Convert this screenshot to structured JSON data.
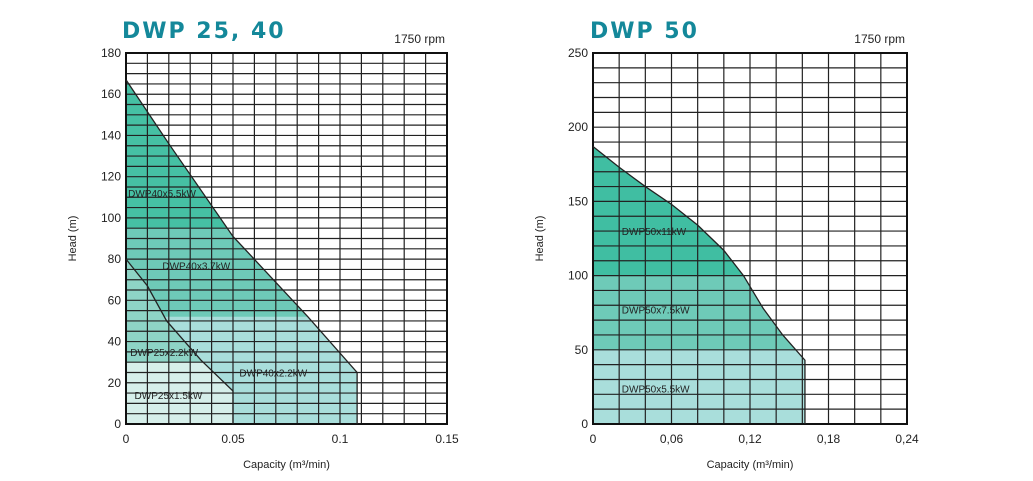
{
  "chart_data": [
    {
      "type": "area",
      "title": "DWP 25, 40",
      "subtitle": "1750 rpm",
      "xlabel": "Capacity (m³/min)",
      "ylabel": "Head (m)",
      "xlim": [
        0,
        0.15
      ],
      "ylim": [
        0,
        180
      ],
      "xticks": [
        0,
        0.05,
        0.1,
        0.15
      ],
      "xtick_labels": [
        "0",
        "0.05",
        "0.1",
        "0.15"
      ],
      "yticks": [
        0,
        20,
        40,
        60,
        80,
        100,
        120,
        140,
        160,
        180
      ],
      "x_grid_step": 0.01,
      "y_grid_step": 5,
      "curves": [
        {
          "name": "DWP40",
          "points": [
            [
              0,
              167
            ],
            [
              0.02,
              136
            ],
            [
              0.05,
              91
            ],
            [
              0.059,
              81
            ],
            [
              0.085,
              52
            ],
            [
              0.108,
              25
            ]
          ],
          "end_x": 0.108
        },
        {
          "name": "DWP25",
          "points": [
            [
              0,
              80
            ],
            [
              0.01,
              67
            ],
            [
              0.019,
              50
            ],
            [
              0.035,
              31
            ],
            [
              0.05,
              16
            ]
          ],
          "end_x": 0.05
        }
      ],
      "bands": [
        {
          "curve": 0,
          "from": 0,
          "to": 52,
          "color": "#a9dedb",
          "label": "DWP40x2.2kW",
          "lx": 0.053,
          "ly": 25
        },
        {
          "curve": 0,
          "from": 52,
          "to": 95,
          "color": "#6ecab8",
          "label": "DWP40x3.7kW",
          "lx": 0.017,
          "ly": 77
        },
        {
          "curve": 0,
          "from": 95,
          "to": 200,
          "color": "#46c0a4",
          "label": "DWP40x5.5kW",
          "lx": 0.001,
          "ly": 112
        },
        {
          "curve": 1,
          "from": 30,
          "to": 200,
          "color": "#8ed4c6",
          "label": "DWP25x2.2kW",
          "lx": 0.002,
          "ly": 35
        },
        {
          "curve": 1,
          "from": 0,
          "to": 30,
          "color": "#d6efea",
          "label": "DWP25x1.5kW",
          "lx": 0.004,
          "ly": 14
        }
      ]
    },
    {
      "type": "area",
      "title": "DWP 50",
      "subtitle": "1750 rpm",
      "xlabel": "Capacity (m³/min)",
      "ylabel": "Head (m)",
      "xlim": [
        0,
        0.24
      ],
      "ylim": [
        0,
        250
      ],
      "xticks": [
        0,
        0.06,
        0.12,
        0.18,
        0.24
      ],
      "xtick_labels": [
        "0",
        "0,06",
        "0,12",
        "0,18",
        "0,24"
      ],
      "yticks": [
        0,
        50,
        100,
        150,
        200,
        250
      ],
      "x_grid_step": 0.02,
      "y_grid_step": 10,
      "curves": [
        {
          "name": "DWP50",
          "points": [
            [
              0,
              187
            ],
            [
              0.02,
              173
            ],
            [
              0.04,
              160
            ],
            [
              0.06,
              148
            ],
            [
              0.08,
              134
            ],
            [
              0.1,
              117
            ],
            [
              0.115,
              100
            ],
            [
              0.13,
              78
            ],
            [
              0.145,
              60
            ],
            [
              0.162,
              43
            ]
          ],
          "end_x": 0.162
        }
      ],
      "bands": [
        {
          "curve": 0,
          "from": 0,
          "to": 50,
          "color": "#a9dedb",
          "label": "DWP50x5.5kW",
          "lx": 0.022,
          "ly": 24
        },
        {
          "curve": 0,
          "from": 50,
          "to": 100,
          "color": "#6ecab8",
          "label": "DWP50x7.5kW",
          "lx": 0.022,
          "ly": 77
        },
        {
          "curve": 0,
          "from": 100,
          "to": 300,
          "color": "#40bea2",
          "label": "DWP50x11kW",
          "lx": 0.022,
          "ly": 130
        }
      ]
    }
  ]
}
